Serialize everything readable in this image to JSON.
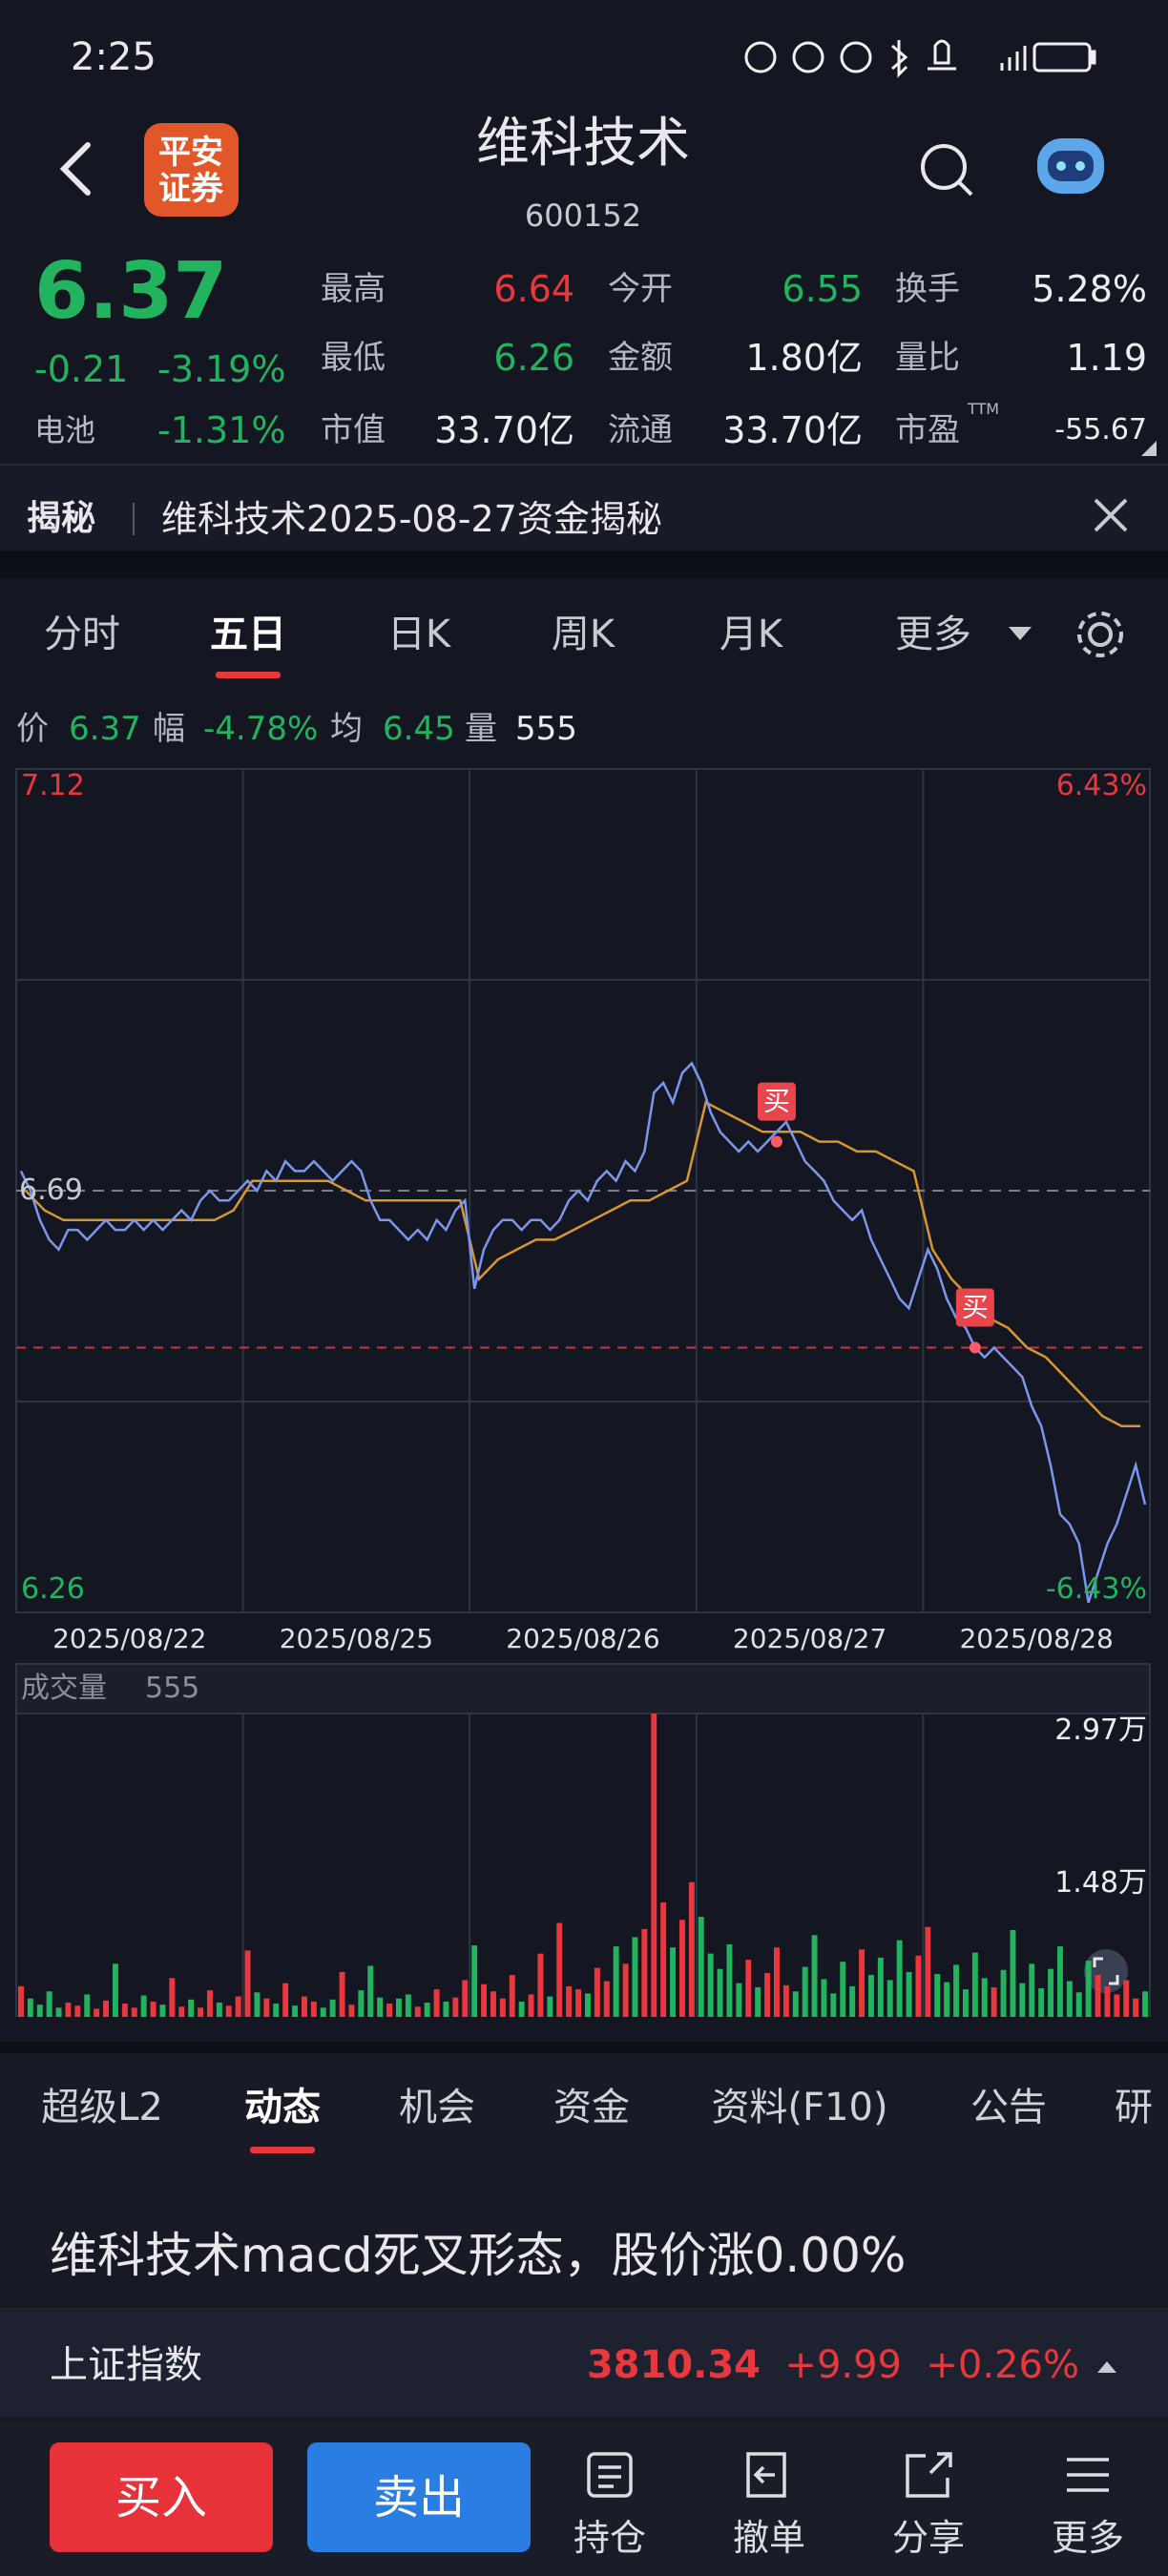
{
  "status_bar": {
    "time": "2:25"
  },
  "header": {
    "logo": [
      "平安",
      "证券"
    ],
    "title": "维科技术",
    "code": "600152"
  },
  "quote": {
    "price": "6.37",
    "change": "-0.21",
    "change_pct": "-3.19%",
    "sector": "电池",
    "sector_pct": "-1.31%",
    "color": "#22b35e",
    "fields": [
      [
        {
          "label": "最高",
          "value": "6.64",
          "color": "#e8383d"
        },
        {
          "label": "今开",
          "value": "6.55",
          "color": "#22b35e"
        },
        {
          "label": "换手",
          "value": "5.28%",
          "color": "#ecedf1"
        }
      ],
      [
        {
          "label": "最低",
          "value": "6.26",
          "color": "#22b35e"
        },
        {
          "label": "金额",
          "value": "1.80亿",
          "color": "#ecedf1"
        },
        {
          "label": "量比",
          "value": "1.19",
          "color": "#ecedf1"
        }
      ],
      [
        {
          "label": "市值",
          "value": "33.70亿",
          "color": "#ecedf1"
        },
        {
          "label": "流通",
          "value": "33.70亿",
          "color": "#ecedf1"
        },
        {
          "label": "市盈",
          "sup": "TTM",
          "value": "-55.67",
          "color": "#ecedf1"
        }
      ]
    ]
  },
  "banner": {
    "tag": "揭秘",
    "text": "维科技术2025-08-27资金揭秘"
  },
  "chart_tabs": {
    "items": [
      "分时",
      "五日",
      "日K",
      "周K",
      "月K",
      "更多"
    ],
    "active": 1
  },
  "info": [
    {
      "label": "价",
      "value": "6.37",
      "color": "#22b35e"
    },
    {
      "label": "幅",
      "value": "-4.78%",
      "color": "#22b35e"
    },
    {
      "label": "均",
      "value": "6.45",
      "color": "#22b35e"
    },
    {
      "label": "量",
      "value": "555",
      "color": "#ecedf1"
    }
  ],
  "chart": {
    "type": "line",
    "up_color": "#e8383d",
    "down_color": "#22b35e",
    "ylim": [
      6.26,
      7.12
    ],
    "yticks": [
      6.26,
      6.69,
      7.12
    ],
    "ygrid": [
      6.475,
      6.905
    ],
    "pct_ticks": [
      {
        "value": 6.26,
        "label": "-6.43%"
      },
      {
        "value": 7.12,
        "label": "6.43%"
      }
    ],
    "ref_line": 6.53,
    "dates": [
      "2025/08/22",
      "2025/08/25",
      "2025/08/26",
      "2025/08/27",
      "2025/08/28"
    ],
    "price": {
      "color": "#7b97ec",
      "values": [
        6.71,
        6.69,
        6.66,
        6.64,
        6.63,
        6.65,
        6.65,
        6.64,
        6.65,
        6.66,
        6.65,
        6.65,
        6.66,
        6.65,
        6.66,
        6.65,
        6.66,
        6.67,
        6.66,
        6.68,
        6.69,
        6.68,
        6.68,
        6.69,
        6.7,
        6.69,
        6.71,
        6.7,
        6.72,
        6.71,
        6.71,
        6.72,
        6.71,
        6.7,
        6.71,
        6.72,
        6.71,
        6.68,
        6.66,
        6.66,
        6.65,
        6.64,
        6.65,
        6.64,
        6.66,
        6.65,
        6.67,
        6.68,
        6.59,
        6.63,
        6.65,
        6.66,
        6.66,
        6.65,
        6.66,
        6.66,
        6.65,
        6.66,
        6.68,
        6.69,
        6.68,
        6.7,
        6.71,
        6.7,
        6.72,
        6.71,
        6.73,
        6.79,
        6.8,
        6.78,
        6.81,
        6.82,
        6.8,
        6.77,
        6.75,
        6.74,
        6.73,
        6.74,
        6.73,
        6.74,
        6.75,
        6.76,
        6.74,
        6.72,
        6.71,
        6.7,
        6.68,
        6.67,
        6.66,
        6.67,
        6.64,
        6.62,
        6.6,
        6.58,
        6.57,
        6.6,
        6.63,
        6.61,
        6.58,
        6.56,
        6.55,
        6.53,
        6.52,
        6.53,
        6.52,
        6.51,
        6.5,
        6.47,
        6.45,
        6.41,
        6.36,
        6.35,
        6.33,
        6.27,
        6.3,
        6.33,
        6.35,
        6.38,
        6.41,
        6.37
      ]
    },
    "average": {
      "color": "#d8962f",
      "values": [
        6.69,
        6.67,
        6.66,
        6.66,
        6.66,
        6.66,
        6.66,
        6.66,
        6.66,
        6.66,
        6.66,
        6.67,
        6.7,
        6.7,
        6.7,
        6.7,
        6.7,
        6.69,
        6.68,
        6.68,
        6.68,
        6.68,
        6.68,
        6.68,
        6.6,
        6.62,
        6.63,
        6.64,
        6.64,
        6.65,
        6.66,
        6.67,
        6.68,
        6.68,
        6.69,
        6.7,
        6.78,
        6.77,
        6.76,
        6.75,
        6.75,
        6.75,
        6.74,
        6.74,
        6.73,
        6.73,
        6.72,
        6.71,
        6.63,
        6.6,
        6.58,
        6.56,
        6.55,
        6.53,
        6.52,
        6.5,
        6.48,
        6.46,
        6.45,
        6.45
      ]
    },
    "markers": [
      {
        "label": "买",
        "index": 80,
        "value": 6.74
      },
      {
        "label": "买",
        "index": 101,
        "value": 6.53
      }
    ],
    "volume": {
      "title": "成交量",
      "current": 555,
      "ylim": [
        0,
        29700
      ],
      "yticks": [
        {
          "value": 29700,
          "label": "2.97万"
        },
        {
          "value": 14800,
          "label": "1.48万"
        }
      ],
      "values": [
        3000,
        1800,
        1200,
        2500,
        900,
        1400,
        1100,
        2200,
        800,
        1600,
        5200,
        1300,
        900,
        2100,
        1500,
        1200,
        3800,
        1000,
        1700,
        900,
        2600,
        1400,
        1100,
        2000,
        6500,
        2400,
        1800,
        1300,
        3300,
        1100,
        2000,
        1500,
        900,
        1700,
        4400,
        1200,
        2600,
        5000,
        1900,
        1300,
        1800,
        2200,
        1000,
        1400,
        2700,
        1500,
        1900,
        3600,
        7000,
        3200,
        2500,
        1800,
        4100,
        1500,
        2200,
        6200,
        2000,
        9200,
        3000,
        2700,
        2300,
        4800,
        3500,
        6900,
        5200,
        7800,
        8600,
        29700,
        11200,
        6800,
        9500,
        13200,
        9800,
        6200,
        4700,
        7100,
        3300,
        5600,
        2900,
        4300,
        6800,
        3100,
        2500,
        4900,
        8000,
        3700,
        2300,
        5400,
        3000,
        6600,
        4100,
        5800,
        3600,
        7500,
        4400,
        6000,
        8800,
        4200,
        3400,
        5100,
        2700,
        6300,
        3800,
        2900,
        4600,
        8500,
        3300,
        5200,
        2800,
        4700,
        6900,
        3500,
        2400,
        5500,
        4100,
        3000,
        2200,
        3600,
        1800,
        2500
      ]
    }
  },
  "bottom_tabs": {
    "items": [
      "超级L2",
      "动态",
      "机会",
      "资金",
      "资料(F10)",
      "公告",
      "研"
    ],
    "active": 1
  },
  "news": "维科技术macd死叉形态，股价涨0.00%",
  "index": {
    "name": "上证指数",
    "value": "3810.34",
    "change": "+9.99",
    "change_pct": "+0.26%",
    "color": "#e8383d"
  },
  "actions": {
    "buy": "买入",
    "sell": "卖出",
    "tools": [
      "持仓",
      "撤单",
      "分享",
      "更多"
    ]
  }
}
